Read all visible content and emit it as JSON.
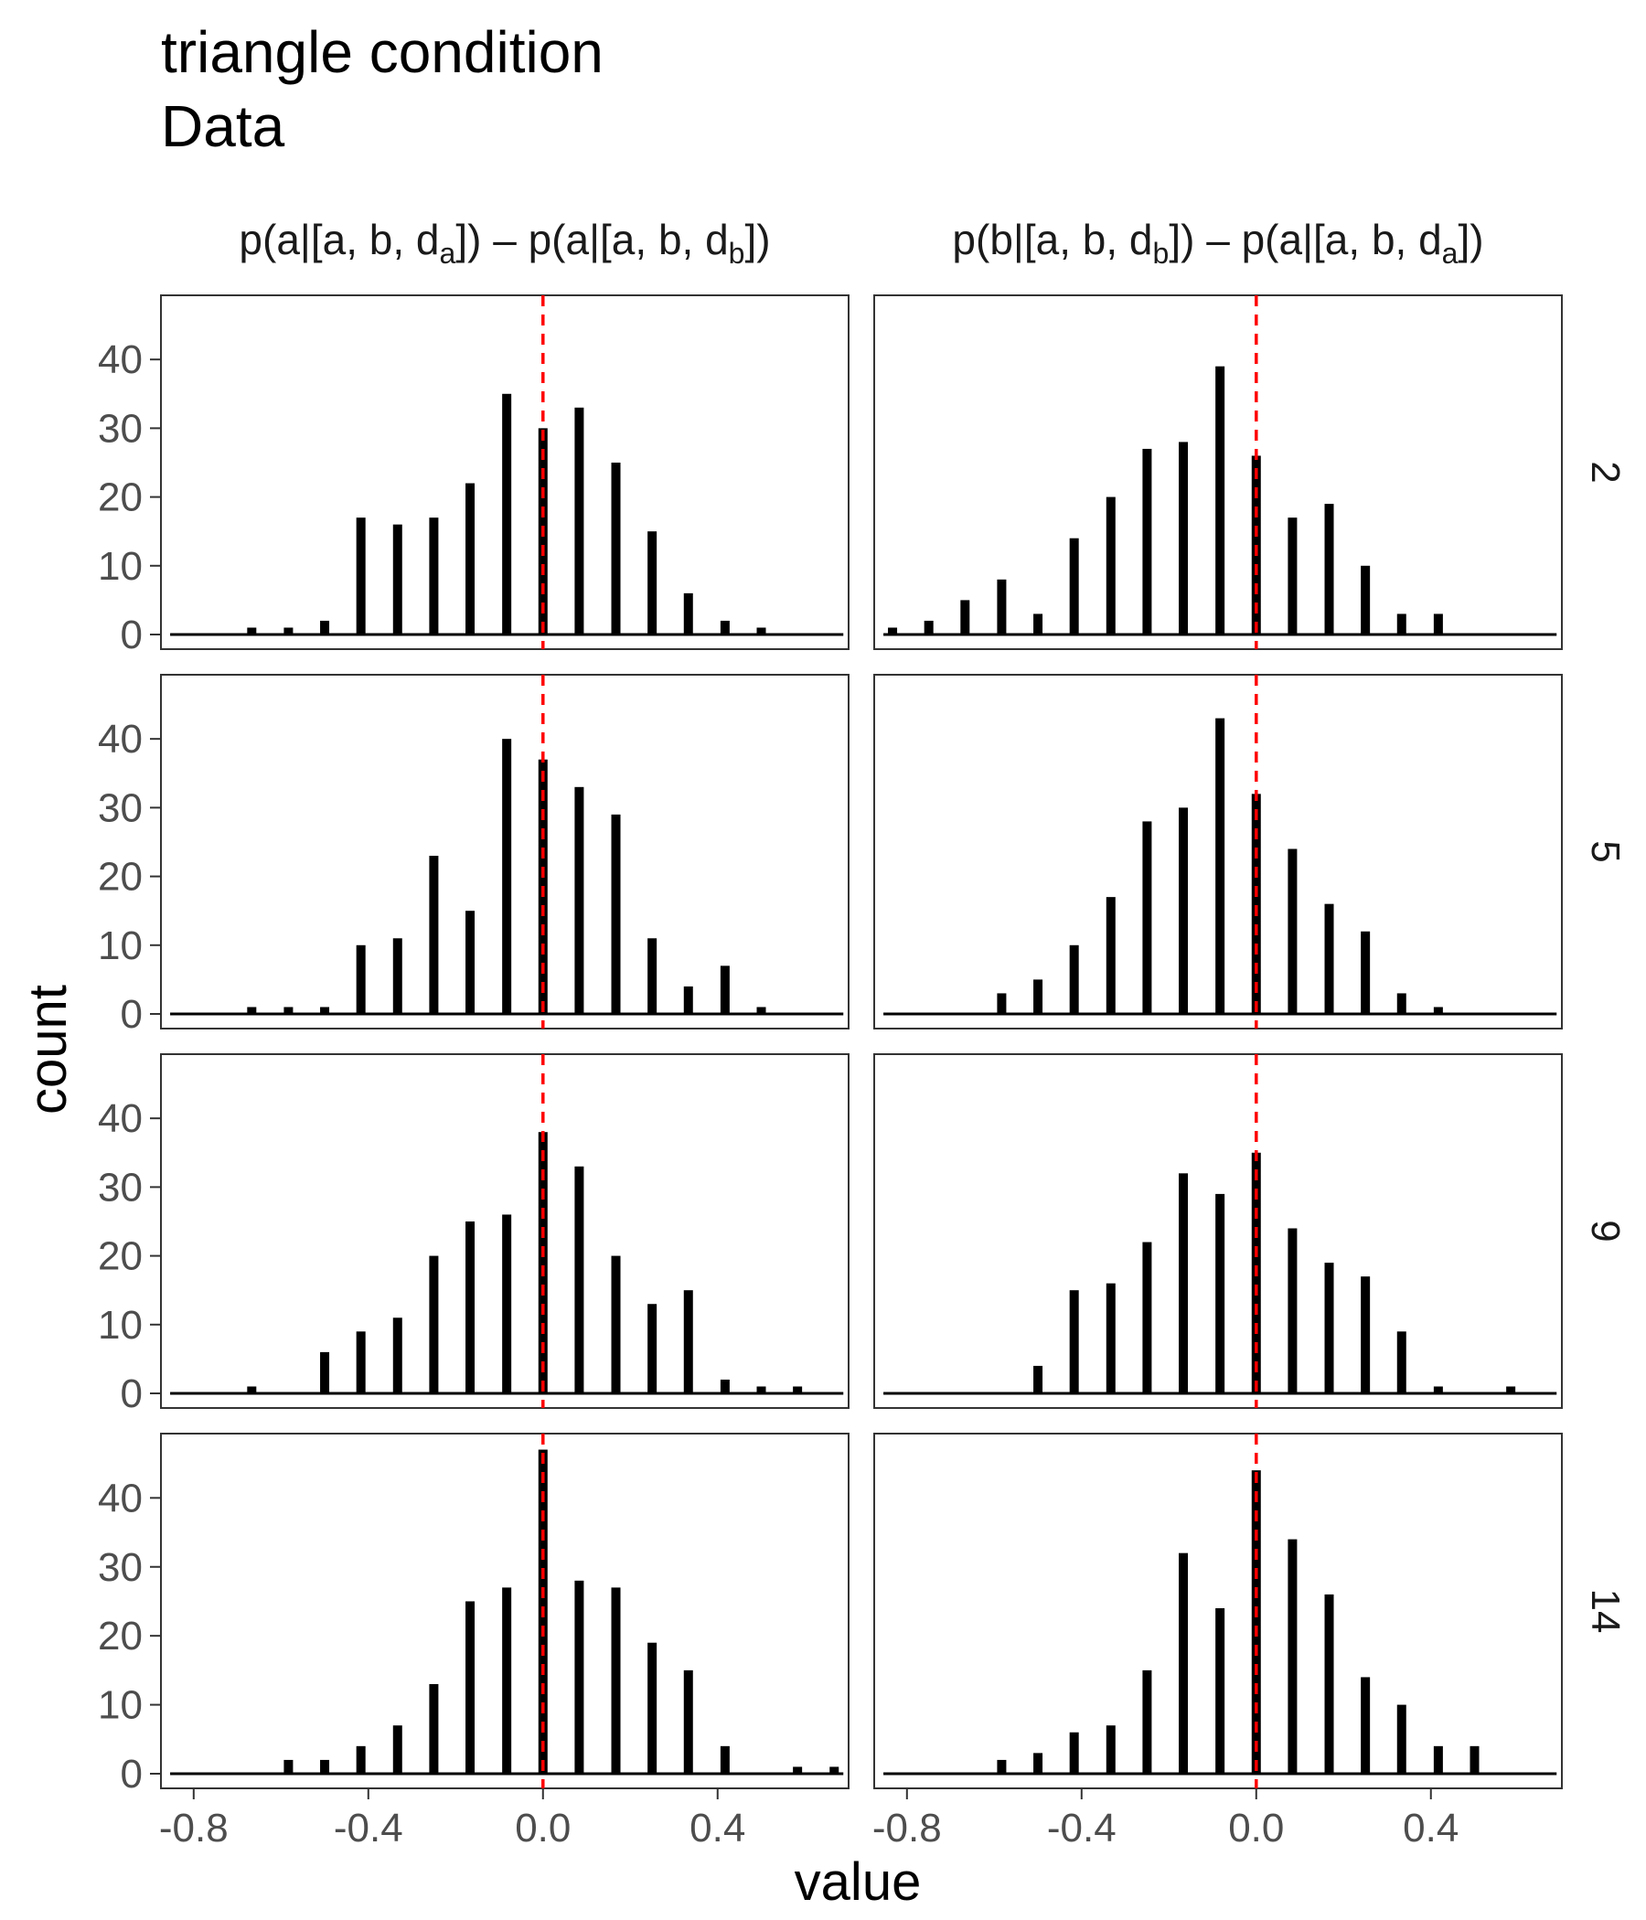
{
  "chart_data": {
    "type": "bar",
    "title": "triangle condition",
    "subtitle": "Data",
    "xlabel": "value",
    "ylabel": "count",
    "xlim": [
      -0.875,
      0.7
    ],
    "ylim": [
      0,
      48
    ],
    "x_ticks": [
      -0.8,
      -0.4,
      0.0,
      0.4
    ],
    "x_tick_labels": [
      "-0.8",
      "-0.4",
      "0.0",
      "0.4"
    ],
    "y_ticks": [
      0,
      10,
      20,
      30,
      40
    ],
    "y_tick_labels": [
      "0",
      "10",
      "20",
      "30",
      "40"
    ],
    "grid": false,
    "legend": "none",
    "reference_line": {
      "x": 0.0,
      "color": "#ff0000",
      "style": "dashed"
    },
    "bar_color": "#000000",
    "bins": [
      -0.833,
      -0.75,
      -0.667,
      -0.583,
      -0.5,
      -0.417,
      -0.333,
      -0.25,
      -0.167,
      -0.083,
      0.0,
      0.083,
      0.167,
      0.25,
      0.333,
      0.417,
      0.5,
      0.583,
      0.667
    ],
    "columns": [
      {
        "id": "left",
        "strip": {
          "parts": [
            {
              "t": "p(a"
            },
            {
              "t": "|",
              "bar": true
            },
            {
              "t": "[a, b, d"
            },
            {
              "t": "a",
              "sub": true
            },
            {
              "t": "])"
            },
            {
              "t": " – "
            },
            {
              "t": "p(a"
            },
            {
              "t": "|",
              "bar": true
            },
            {
              "t": "[a, b, d"
            },
            {
              "t": "b",
              "sub": true
            },
            {
              "t": "])"
            }
          ]
        }
      },
      {
        "id": "right",
        "strip": {
          "parts": [
            {
              "t": "p(b"
            },
            {
              "t": "|",
              "bar": true
            },
            {
              "t": "[a, b, d"
            },
            {
              "t": "b",
              "sub": true
            },
            {
              "t": "])"
            },
            {
              "t": " – "
            },
            {
              "t": "p(a"
            },
            {
              "t": "|",
              "bar": true
            },
            {
              "t": "[a, b, d"
            },
            {
              "t": "a",
              "sub": true
            },
            {
              "t": "])"
            }
          ]
        }
      }
    ],
    "rows": [
      "2",
      "5",
      "9",
      "14"
    ],
    "panels": [
      {
        "row": "2",
        "col": "left",
        "values": [
          0,
          0,
          1,
          1,
          2,
          17,
          16,
          17,
          22,
          35,
          30,
          33,
          25,
          15,
          6,
          2,
          1,
          0,
          0
        ]
      },
      {
        "row": "2",
        "col": "right",
        "values": [
          1,
          2,
          5,
          8,
          3,
          14,
          20,
          27,
          28,
          39,
          26,
          17,
          19,
          10,
          3,
          3,
          0,
          0,
          0
        ]
      },
      {
        "row": "5",
        "col": "left",
        "values": [
          0,
          0,
          1,
          1,
          1,
          10,
          11,
          23,
          15,
          40,
          37,
          33,
          29,
          11,
          4,
          7,
          1,
          0,
          0
        ]
      },
      {
        "row": "5",
        "col": "right",
        "values": [
          0,
          0,
          0,
          3,
          5,
          10,
          17,
          28,
          30,
          43,
          32,
          24,
          16,
          12,
          3,
          1,
          0,
          0,
          0
        ]
      },
      {
        "row": "9",
        "col": "left",
        "values": [
          0,
          0,
          1,
          0,
          6,
          9,
          11,
          20,
          25,
          26,
          38,
          33,
          20,
          13,
          15,
          2,
          1,
          1,
          0
        ]
      },
      {
        "row": "9",
        "col": "right",
        "values": [
          0,
          0,
          0,
          0,
          4,
          15,
          16,
          22,
          32,
          29,
          35,
          24,
          19,
          17,
          9,
          1,
          0,
          1,
          0
        ]
      },
      {
        "row": "14",
        "col": "left",
        "values": [
          0,
          0,
          0,
          2,
          2,
          4,
          7,
          13,
          25,
          27,
          47,
          28,
          27,
          19,
          15,
          4,
          0,
          1,
          1
        ]
      },
      {
        "row": "14",
        "col": "right",
        "values": [
          0,
          0,
          0,
          2,
          3,
          6,
          7,
          15,
          32,
          24,
          44,
          34,
          26,
          14,
          10,
          4,
          4,
          0,
          0
        ]
      }
    ]
  }
}
